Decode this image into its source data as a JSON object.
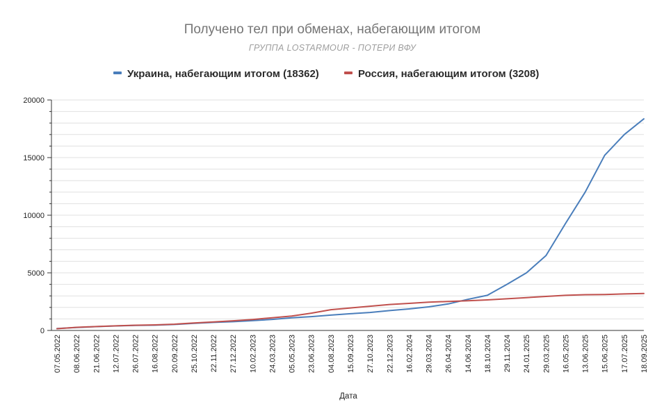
{
  "chart_data": {
    "type": "line",
    "title": "Получено тел при обменах, набегающим итогом",
    "subtitle": "ГРУППА LOSTARMOUR - ПОТЕРИ ВФУ",
    "xlabel": "Дата",
    "ylabel": "",
    "ylim": [
      0,
      20000
    ],
    "yticks": [
      "0",
      "5000",
      "10000",
      "15000",
      "20000"
    ],
    "grid": true,
    "legend_position": "top",
    "categories": [
      "07.05.2022",
      "08.06.2022",
      "21.06.2022",
      "12.07.2022",
      "26.07.2022",
      "16.08.2022",
      "20.09.2022",
      "25.10.2022",
      "22.11.2022",
      "27.12.2022",
      "10.02.2023",
      "24.03.2023",
      "05.05.2023",
      "23.06.2023",
      "04.08.2023",
      "15.09.2023",
      "27.10.2023",
      "22.12.2023",
      "16.02.2024",
      "29.03.2024",
      "26.04.2024",
      "14.06.2024",
      "18.10.2024",
      "29.11.2024",
      "24.01.2025",
      "29.03.2025",
      "16.05.2025",
      "13.06.2025",
      "15.06.2025",
      "17.07.2025",
      "18.09.2025"
    ],
    "series": [
      {
        "name": "Украина, набегающим итогом (18362)",
        "color": "#4a7ebb",
        "values": [
          160,
          260,
          330,
          390,
          440,
          460,
          520,
          620,
          700,
          760,
          850,
          960,
          1100,
          1200,
          1330,
          1450,
          1560,
          1720,
          1870,
          2050,
          2300,
          2700,
          3050,
          4000,
          5000,
          6500,
          9300,
          12000,
          15200,
          17000,
          18362
        ]
      },
      {
        "name": "Россия, набегающим итогом (3208)",
        "color": "#c0504d",
        "values": [
          150,
          270,
          340,
          400,
          450,
          480,
          540,
          650,
          740,
          840,
          950,
          1100,
          1250,
          1500,
          1800,
          1950,
          2100,
          2250,
          2350,
          2450,
          2520,
          2580,
          2650,
          2750,
          2850,
          2950,
          3050,
          3100,
          3120,
          3170,
          3208
        ]
      }
    ]
  },
  "colors": {
    "title": "#757575",
    "subtitle": "#9e9e9e",
    "grid": "#e0e0e0",
    "axis": "#333333"
  }
}
